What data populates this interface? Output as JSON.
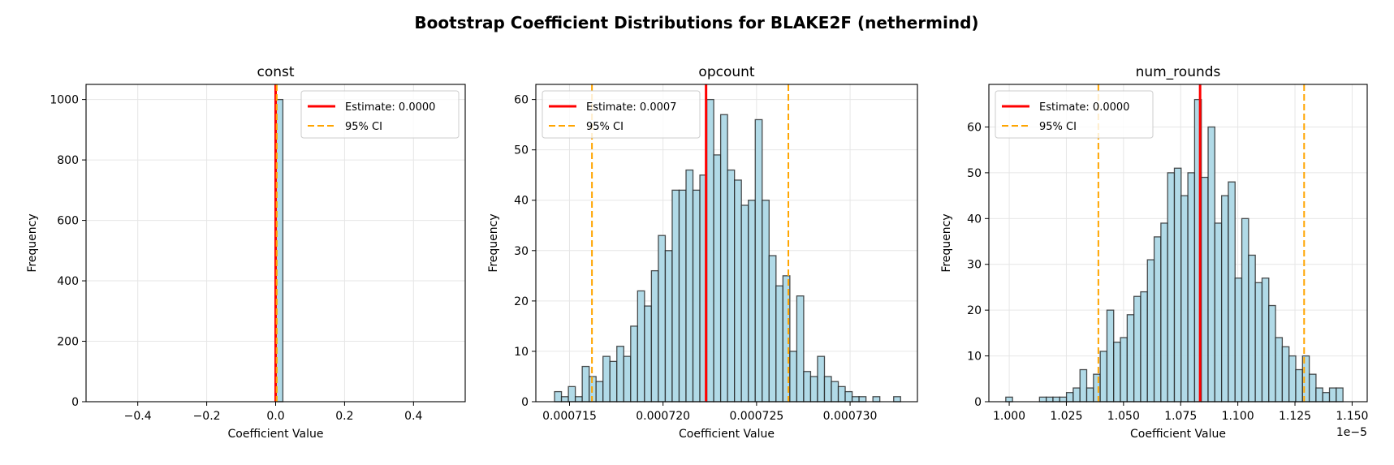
{
  "figure": {
    "title": "Bootstrap Coefficient Distributions for BLAKE2F (nethermind)"
  },
  "colors": {
    "bar_fill": "#add8e6",
    "bar_edge": "#000000",
    "estimate": "#ff0000",
    "ci": "#ffa500",
    "grid": "#e6e6e6"
  },
  "chart_data": [
    {
      "type": "bar",
      "title": "const",
      "xlabel": "Coefficient Value",
      "ylabel": "Frequency",
      "xlim": [
        -0.55,
        0.55
      ],
      "ylim": [
        0,
        1050
      ],
      "xticks": [
        -0.4,
        -0.2,
        0.0,
        0.2,
        0.4
      ],
      "xtick_labels": [
        "−0.4",
        "−0.2",
        "0.0",
        "0.2",
        "0.4"
      ],
      "yticks": [
        0,
        200,
        400,
        600,
        800,
        1000
      ],
      "ytick_labels": [
        "0",
        "200",
        "400",
        "600",
        "800",
        "1000"
      ],
      "x_offset_label": "",
      "grid": true,
      "bin_start": 0.0,
      "bin_width": 0.021,
      "counts": [
        1000
      ],
      "estimate": 0.0,
      "ci": [
        0.003,
        0.003
      ],
      "legend": {
        "position": "upper-right",
        "estimate_label": "Estimate: 0.0000",
        "ci_label": "95% CI"
      }
    },
    {
      "type": "bar",
      "title": "opcount",
      "xlabel": "Coefficient Value",
      "ylabel": "Frequency",
      "xlim": [
        0.0007132,
        0.0007336
      ],
      "ylim": [
        0,
        63
      ],
      "xticks": [
        0.000715,
        0.00072,
        0.000725,
        0.00073
      ],
      "xtick_labels": [
        "0.000715",
        "0.000720",
        "0.000725",
        "0.000730"
      ],
      "yticks": [
        0,
        10,
        20,
        30,
        40,
        50,
        60
      ],
      "ytick_labels": [
        "0",
        "10",
        "20",
        "30",
        "40",
        "50",
        "60"
      ],
      "x_offset_label": "",
      "grid": true,
      "bin_start": 0.0007142,
      "bin_width": 3.7e-07,
      "counts": [
        2,
        1,
        3,
        1,
        7,
        5,
        4,
        9,
        8,
        11,
        9,
        15,
        22,
        19,
        26,
        33,
        30,
        42,
        42,
        46,
        42,
        45,
        60,
        49,
        57,
        46,
        44,
        39,
        40,
        56,
        40,
        29,
        23,
        25,
        10,
        21,
        6,
        5,
        9,
        5,
        4,
        3,
        2,
        1,
        1,
        0,
        1,
        0,
        0,
        1
      ],
      "estimate": 0.0007223,
      "ci": [
        0.0007162,
        0.0007267
      ],
      "legend": {
        "position": "upper-left",
        "estimate_label": "Estimate: 0.0007",
        "ci_label": "95% CI"
      }
    },
    {
      "type": "bar",
      "title": "num_rounds",
      "xlabel": "Coefficient Value",
      "ylabel": "Frequency",
      "xlim": [
        0.9911,
        1.1566
      ],
      "ylim": [
        0,
        69.3
      ],
      "xticks": [
        1.0,
        1.025,
        1.05,
        1.075,
        1.1,
        1.125,
        1.15
      ],
      "xtick_labels": [
        "1.000",
        "1.025",
        "1.050",
        "1.075",
        "1.100",
        "1.125",
        "1.150"
      ],
      "yticks": [
        0,
        10,
        20,
        30,
        40,
        50,
        60
      ],
      "ytick_labels": [
        "0",
        "10",
        "20",
        "30",
        "40",
        "50",
        "60"
      ],
      "x_offset_label": "1e−5",
      "grid": true,
      "bin_start": 0.9985,
      "bin_width": 0.00295,
      "counts": [
        1,
        0,
        0,
        0,
        0,
        1,
        1,
        1,
        1,
        2,
        3,
        7,
        3,
        6,
        11,
        20,
        13,
        14,
        19,
        23,
        24,
        31,
        36,
        39,
        50,
        51,
        45,
        50,
        66,
        49,
        60,
        39,
        45,
        48,
        27,
        40,
        32,
        26,
        27,
        21,
        14,
        12,
        10,
        7,
        10,
        6,
        3,
        2,
        3,
        3
      ],
      "estimate": 1.0835,
      "ci": [
        1.039,
        1.129
      ],
      "legend": {
        "position": "upper-left",
        "estimate_label": "Estimate: 0.0000",
        "ci_label": "95% CI"
      }
    }
  ]
}
